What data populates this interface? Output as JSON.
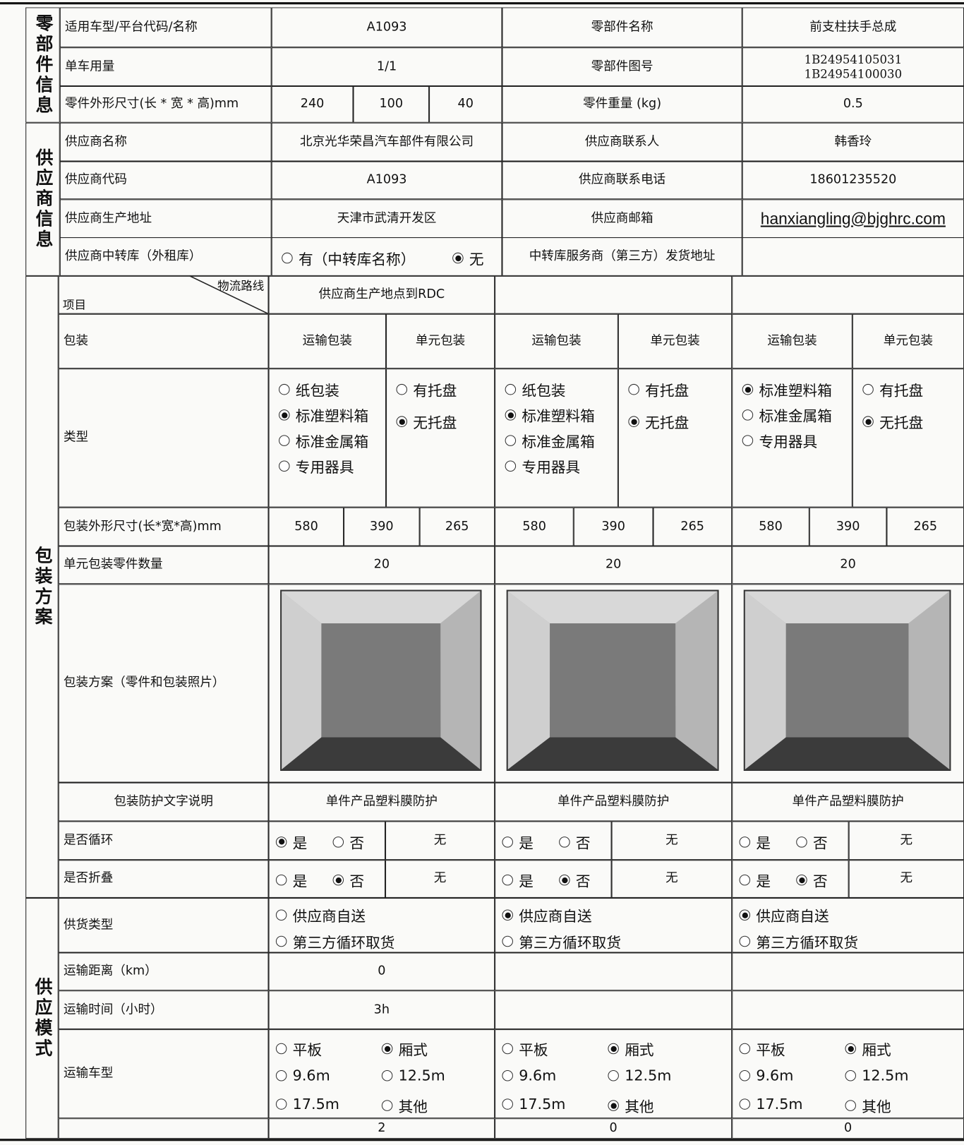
{
  "part_info": {
    "section_label": "零部件信息",
    "model_label": "适用车型/平台代码/名称",
    "model": "A1093",
    "part_name_label": "零部件名称",
    "part_name": "前支柱扶手总成",
    "usage_label": "单车用量",
    "usage": "1/1",
    "drawing_no_label": "零部件图号",
    "drawing_no": [
      "1B24954105031",
      "1B24954100030"
    ],
    "size_label": "零件外形尺寸(长 * 宽 * 高)mm",
    "size": [
      240,
      100,
      40
    ],
    "weight_label": "零件重量 (kg)",
    "weight": 0.5
  },
  "supplier_info": {
    "section_label": "供应商信息",
    "name_label": "供应商名称",
    "name": "北京光华荣昌汽车部件有限公司",
    "contact_label": "供应商联系人",
    "contact": "韩香玲",
    "code_label": "供应商代码",
    "code": "A1093",
    "phone_label": "供应商联系电话",
    "phone": "18601235520",
    "address_label": "供应商生产地址",
    "address": "天津市武清开发区",
    "email_label": "供应商邮箱",
    "email": "hanxiangling@bjghrc.com",
    "transfer_label": "供应商中转库（外租库）",
    "transfer_options": [
      {
        "label": "有（中转库名称）",
        "checked": false
      },
      {
        "label": "无",
        "checked": true
      }
    ],
    "transfer_address_label": "中转库服务商（第三方）发货地址"
  },
  "packaging": {
    "section_label": "包装方案",
    "route_header": "物流路线",
    "item_header": "项目",
    "packaging_label": "包装",
    "type_label": "类型",
    "dims_label": "包装外形尺寸(长*宽*高)mm",
    "qty_label": "单元包装零件数量",
    "photo_label": "包装方案（零件和包装照片）",
    "protection_label": "包装防护文字说明",
    "recycle_label": "是否循环",
    "fold_label": "是否折叠",
    "routes": [
      {
        "route": "供应商生产地点到RDC",
        "transport_header": "运输包装",
        "unit_header": "单元包装",
        "transport_options": [
          {
            "label": "纸包装",
            "checked": false
          },
          {
            "label": "标准塑料箱",
            "checked": true
          },
          {
            "label": "标准金属箱",
            "checked": false
          },
          {
            "label": "专用器具",
            "checked": false
          }
        ],
        "unit_options": [
          {
            "label": "有托盘",
            "checked": false
          },
          {
            "label": "无托盘",
            "checked": true
          }
        ],
        "dims": [
          580,
          390,
          265
        ],
        "qty": 20,
        "protection": "单件产品塑料膜防护",
        "recycle_options": [
          {
            "label": "是",
            "checked": true
          },
          {
            "label": "否",
            "checked": false
          }
        ],
        "recycle_note": "无",
        "fold_options": [
          {
            "label": "是",
            "checked": false
          },
          {
            "label": "否",
            "checked": true
          }
        ],
        "fold_note": "无"
      },
      {
        "transport_header": "运输包装",
        "unit_header": "单元包装",
        "transport_options": [
          {
            "label": "纸包装",
            "checked": false
          },
          {
            "label": "标准塑料箱",
            "checked": true
          },
          {
            "label": "标准金属箱",
            "checked": false
          },
          {
            "label": "专用器具",
            "checked": false
          }
        ],
        "unit_options": [
          {
            "label": "有托盘",
            "checked": false
          },
          {
            "label": "无托盘",
            "checked": true
          }
        ],
        "dims": [
          580,
          390,
          265
        ],
        "qty": 20,
        "protection": "单件产品塑料膜防护",
        "recycle_options": [
          {
            "label": "是",
            "checked": false
          },
          {
            "label": "否",
            "checked": false
          }
        ],
        "recycle_note": "无",
        "fold_options": [
          {
            "label": "是",
            "checked": false
          },
          {
            "label": "否",
            "checked": true
          }
        ],
        "fold_note": "无"
      },
      {
        "transport_header": "运输包装",
        "unit_header": "单元包装",
        "transport_options": [
          {
            "label": "标准塑料箱",
            "checked": true
          },
          {
            "label": "标准金属箱",
            "checked": false
          },
          {
            "label": "专用器具",
            "checked": false
          }
        ],
        "unit_options": [
          {
            "label": "有托盘",
            "checked": false
          },
          {
            "label": "无托盘",
            "checked": true
          }
        ],
        "dims": [
          580,
          390,
          265
        ],
        "qty": 20,
        "protection": "单件产品塑料膜防护",
        "recycle_options": [
          {
            "label": "是",
            "checked": false
          },
          {
            "label": "否",
            "checked": false
          }
        ],
        "recycle_note": "无",
        "fold_options": [
          {
            "label": "是",
            "checked": false
          },
          {
            "label": "否",
            "checked": true
          }
        ],
        "fold_note": "无"
      }
    ]
  },
  "supply_mode": {
    "section_label": "供应模式",
    "supply_type_label": "供货类型",
    "distance_label": "运输距离（km）",
    "time_label": "运输时间（小时）",
    "vehicle_label": "运输车型",
    "routes": [
      {
        "supply_options": [
          {
            "label": "供应商自送",
            "checked": false
          },
          {
            "label": "第三方循环取货",
            "checked": false
          }
        ],
        "distance": 0,
        "time": "3h",
        "vehicle_options": [
          {
            "label": "平板",
            "checked": false
          },
          {
            "label": "厢式",
            "checked": true
          },
          {
            "label": "9.6m",
            "checked": false
          },
          {
            "label": "12.5m",
            "checked": false
          },
          {
            "label": "17.5m",
            "checked": false
          },
          {
            "label": "其他",
            "checked": false
          }
        ],
        "count": 2
      },
      {
        "supply_options": [
          {
            "label": "供应商自送",
            "checked": true
          },
          {
            "label": "第三方循环取货",
            "checked": false
          }
        ],
        "vehicle_options": [
          {
            "label": "平板",
            "checked": false
          },
          {
            "label": "厢式",
            "checked": true
          },
          {
            "label": "9.6m",
            "checked": false
          },
          {
            "label": "12.5m",
            "checked": false
          },
          {
            "label": "17.5m",
            "checked": false
          },
          {
            "label": "其他",
            "checked": true
          }
        ],
        "count": 0
      },
      {
        "supply_options": [
          {
            "label": "供应商自送",
            "checked": true
          },
          {
            "label": "第三方循环取货",
            "checked": false
          }
        ],
        "vehicle_options": [
          {
            "label": "平板",
            "checked": false
          },
          {
            "label": "厢式",
            "checked": true
          },
          {
            "label": "9.6m",
            "checked": false
          },
          {
            "label": "12.5m",
            "checked": false
          },
          {
            "label": "17.5m",
            "checked": false
          },
          {
            "label": "其他",
            "checked": false
          }
        ],
        "count": 0
      }
    ]
  }
}
